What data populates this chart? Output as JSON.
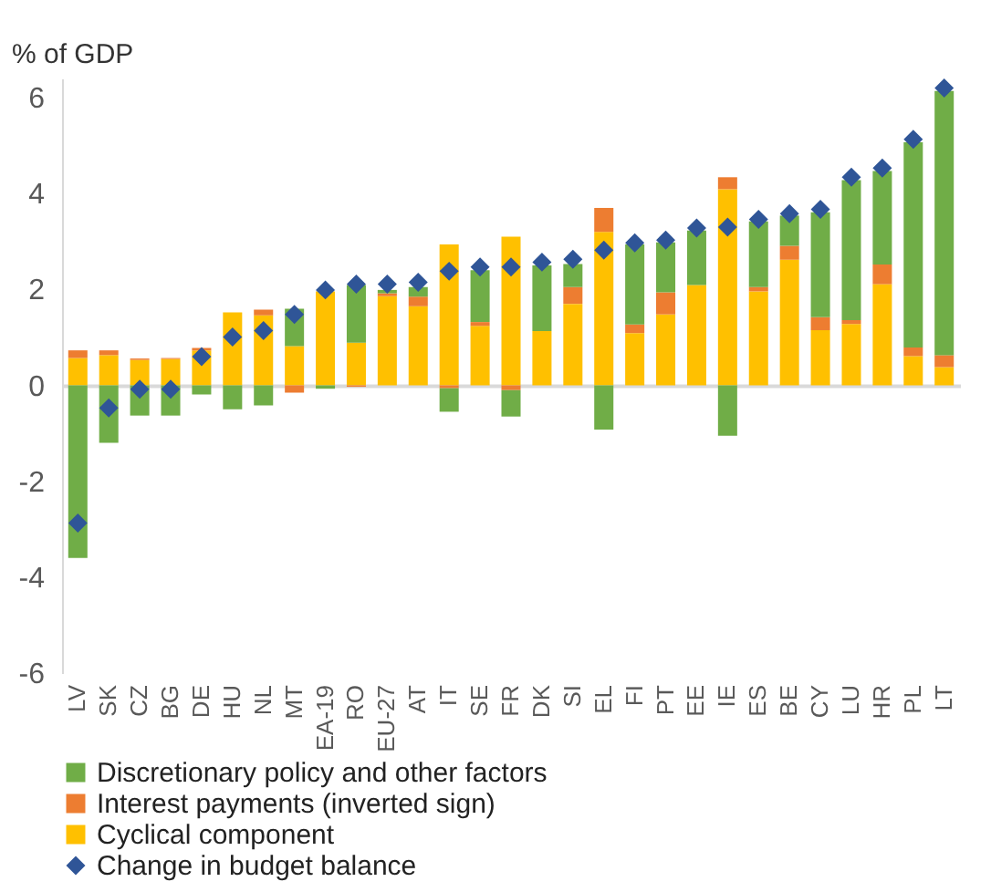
{
  "chart_data": {
    "type": "bar",
    "stacked": true,
    "ylabel": "% of GDP",
    "categories": [
      "LV",
      "SK",
      "CZ",
      "BG",
      "DE",
      "HU",
      "NL",
      "MT",
      "EA-19",
      "RO",
      "EU-27",
      "AT",
      "IT",
      "SE",
      "FR",
      "DK",
      "SI",
      "EL",
      "FI",
      "PT",
      "EE",
      "IE",
      "ES",
      "BE",
      "CY",
      "LU",
      "HR",
      "PL",
      "LT"
    ],
    "series": [
      {
        "name": "Cyclical component",
        "color": "#ffc000",
        "values": [
          0.57,
          0.63,
          0.53,
          0.55,
          0.73,
          1.52,
          1.46,
          0.82,
          1.96,
          0.89,
          1.86,
          1.65,
          2.94,
          1.24,
          3.1,
          1.13,
          1.7,
          3.2,
          1.09,
          1.48,
          2.09,
          4.09,
          1.96,
          2.62,
          1.15,
          1.28,
          2.11,
          0.61,
          0.38
        ]
      },
      {
        "name": "Interest payments (inverted sign)",
        "color": "#ed7d31",
        "values": [
          0.16,
          0.1,
          0.03,
          0.02,
          0.05,
          0,
          0.12,
          -0.15,
          0,
          -0.03,
          0.06,
          0.2,
          -0.06,
          0.08,
          -0.1,
          0,
          0.35,
          0.5,
          0.18,
          0.46,
          0,
          0.25,
          0.09,
          0.29,
          0.27,
          0.08,
          0.41,
          0.18,
          0.25
        ]
      },
      {
        "name": "Discretionary policy and other factors",
        "color": "#70ad47",
        "values": [
          -3.6,
          -1.2,
          -0.63,
          -0.63,
          -0.19,
          -0.5,
          -0.42,
          0.78,
          -0.07,
          1.2,
          0.07,
          0.2,
          -0.49,
          1.08,
          -0.55,
          1.37,
          0.48,
          -0.92,
          1.67,
          1.04,
          1.14,
          -1.05,
          1.37,
          0.63,
          2.19,
          2.92,
          1.95,
          4.28,
          5.51
        ]
      },
      {
        "name": "Change in budget balance",
        "type": "scatter",
        "marker": "diamond",
        "color": "#2f5597",
        "values": [
          -2.87,
          -0.47,
          -0.08,
          -0.08,
          0.6,
          1.01,
          1.14,
          1.48,
          1.99,
          2.11,
          2.11,
          2.15,
          2.38,
          2.47,
          2.47,
          2.57,
          2.63,
          2.82,
          2.97,
          3.03,
          3.28,
          3.3,
          3.46,
          3.58,
          3.67,
          4.34,
          4.53,
          5.13,
          6.2
        ]
      }
    ],
    "ylim": [
      -6,
      6.4
    ],
    "yticks": [
      -6,
      -4,
      -2,
      0,
      2,
      4,
      6
    ],
    "legend": "bottom"
  }
}
